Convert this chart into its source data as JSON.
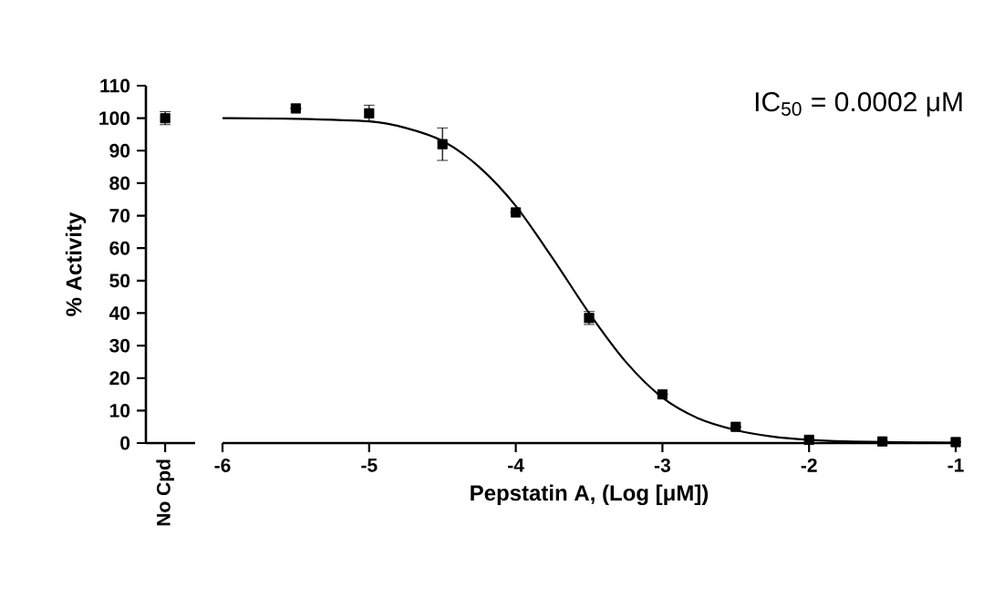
{
  "chart_data": [
    {
      "type": "scatter",
      "ylabel": "% Activity",
      "categories": [
        "No Cpd"
      ],
      "ylim": [
        0,
        110
      ],
      "yticks": [
        0,
        10,
        20,
        30,
        40,
        50,
        60,
        70,
        80,
        90,
        100,
        110
      ],
      "series": [
        {
          "color": "#000000",
          "marker": "square",
          "values": [
            100
          ],
          "errors": [
            2
          ]
        }
      ]
    },
    {
      "type": "scatter",
      "xlabel": "Pepstatin A, (Log [μM])",
      "xlim": [
        -6,
        -1
      ],
      "xticks": [
        -6,
        -5,
        -4,
        -3,
        -2,
        -1
      ],
      "ylim": [
        0,
        110
      ],
      "tick_labels": "x",
      "annotations": [
        "IC$_{50}$ = 0.0002 μM"
      ],
      "series": [
        {
          "color": "#000000",
          "marker": "square",
          "x": [
            -5.5,
            -5,
            -4.5,
            -4,
            -3.5,
            -3,
            -2.5,
            -2,
            -1.5,
            -1
          ],
          "values": [
            103,
            101.5,
            92,
            71,
            38.5,
            15,
            5,
            1,
            0.5,
            0.3
          ],
          "errors": [
            null,
            2.5,
            5,
            null,
            2,
            null,
            null,
            null,
            null,
            null
          ]
        },
        {
          "type": "line",
          "color": "#000000",
          "marker": "none",
          "line_style": "solid",
          "x": [
            -6,
            -5.5,
            -5,
            -4.75,
            -4.5,
            -4.25,
            -4,
            -3.75,
            -3.5,
            -3.25,
            -3,
            -2.75,
            -2.5,
            -2.25,
            -2,
            -1.75,
            -1.5,
            -1
          ],
          "values": [
            100,
            99.8,
            99,
            97,
            93,
            85,
            73,
            57,
            40,
            25,
            14,
            7.5,
            4,
            2,
            1,
            0.5,
            0.3,
            0.1
          ]
        }
      ]
    }
  ]
}
